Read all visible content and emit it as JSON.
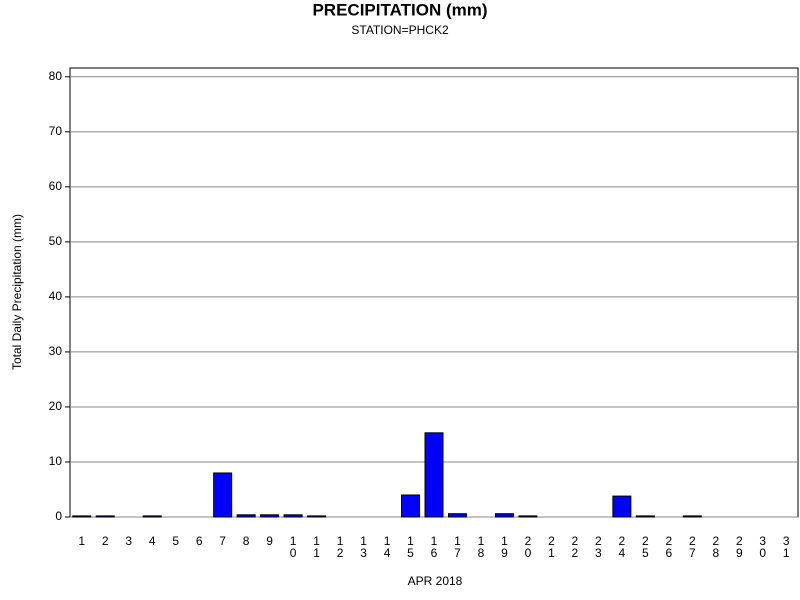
{
  "chart_data": {
    "type": "bar",
    "title": "PRECIPITATION (mm)",
    "subtitle": "STATION=PHCK2",
    "x_label": "APR 2018",
    "y_label": "Total Daily Precipitation (mm)",
    "categories": [
      "1",
      "2",
      "3",
      "4",
      "5",
      "6",
      "7",
      "8",
      "9",
      "10",
      "11",
      "12",
      "13",
      "14",
      "15",
      "16",
      "17",
      "18",
      "19",
      "20",
      "21",
      "22",
      "23",
      "24",
      "25",
      "26",
      "27",
      "28",
      "29",
      "30",
      "31"
    ],
    "values": [
      0.2,
      0.2,
      0,
      0.2,
      0,
      0,
      8.0,
      0.4,
      0.4,
      0.4,
      0.2,
      0,
      0,
      0,
      4.0,
      15.3,
      0.6,
      0,
      0.6,
      0.2,
      0,
      0,
      0,
      3.8,
      0.2,
      0,
      0.2,
      0,
      0,
      0,
      0
    ],
    "color": "#0000ff",
    "ylim": [
      0,
      81.6
    ],
    "yticks": [
      0,
      10,
      20,
      30,
      40,
      50,
      60,
      70,
      80
    ],
    "grid": true
  }
}
